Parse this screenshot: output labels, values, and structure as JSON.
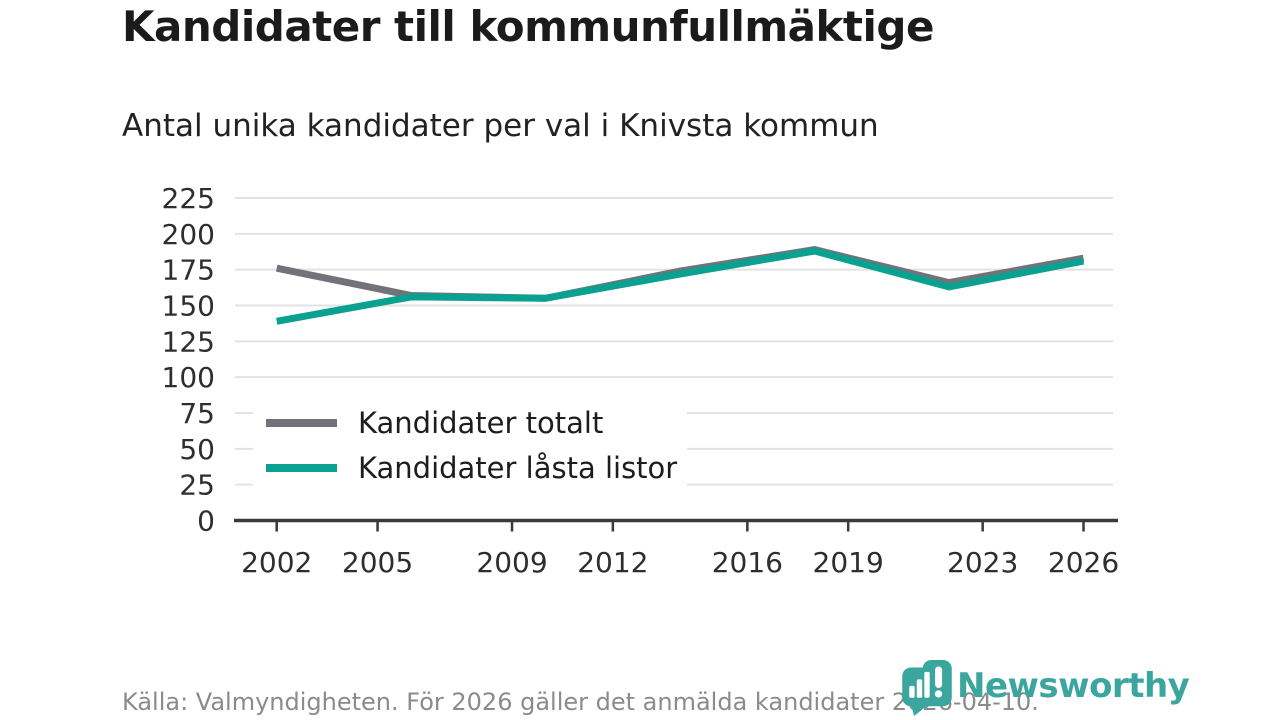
{
  "header": {
    "title": "Kandidater till kommunfullmäktige",
    "subtitle": "Antal unika kandidater per val i Knivsta kommun"
  },
  "footer": {
    "source": "Källa: Valmyndigheten. För 2026 gäller det anmälda kandidater 2026-04-10."
  },
  "branding": {
    "logo_text": "Newsworthy",
    "logo_icon": "newsworthy-pin-barchart-exclamation-icon",
    "logo_color": "#3ba69e"
  },
  "colors": {
    "series_totalt": "#72727a",
    "series_lasta": "#0aa191",
    "gridline": "#e2e2e2",
    "axis": "#3a3a3a",
    "tick_label": "#2e2e2e",
    "title_text": "#1b1b1b",
    "muted_text": "#8b8b8b",
    "background": "#ffffff"
  },
  "chart_data": {
    "type": "line",
    "title": "Kandidater till kommunfullmäktige",
    "subtitle": "Antal unika kandidater per val i Knivsta kommun",
    "x": [
      2002,
      2006,
      2010,
      2014,
      2018,
      2022,
      2026
    ],
    "series": [
      {
        "name": "Kandidater totalt",
        "color": "#72727a",
        "values": [
          176,
          157,
          155,
          174,
          189,
          166,
          183
        ]
      },
      {
        "name": "Kandidater låsta listor",
        "color": "#0aa191",
        "values": [
          139,
          156,
          155,
          172,
          188,
          163,
          181
        ]
      }
    ],
    "xticks": [
      2002,
      2005,
      2009,
      2012,
      2016,
      2019,
      2023,
      2026
    ],
    "yticks": [
      0,
      25,
      50,
      75,
      100,
      125,
      150,
      175,
      200,
      225
    ],
    "ylim": [
      0,
      232
    ],
    "xlabel": "",
    "ylabel": "",
    "grid": "horizontal",
    "legend_position": "inside-bottom-left"
  }
}
